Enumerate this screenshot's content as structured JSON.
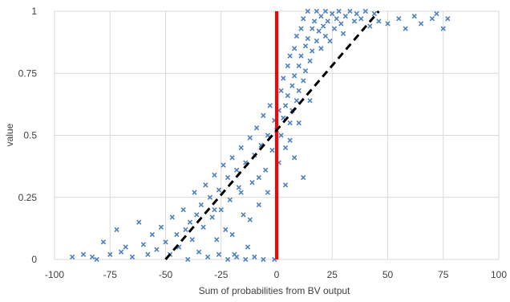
{
  "chart_data": {
    "type": "scatter",
    "title": "",
    "xlabel": "Sum of probabilities from BV output",
    "ylabel": "value",
    "xlim": [
      -100,
      100
    ],
    "ylim": [
      0,
      1
    ],
    "x_ticks": [
      -100,
      -75,
      -50,
      -25,
      0,
      25,
      50,
      75,
      100
    ],
    "x_tick_labels": [
      "-100",
      "-75",
      "-50",
      "-25",
      "0",
      "25",
      "50",
      "75",
      "100"
    ],
    "y_ticks": [
      0,
      0.25,
      0.5,
      0.75,
      1
    ],
    "y_tick_labels": [
      "0",
      "0.25",
      "0.5",
      "0.75",
      "1"
    ],
    "grid": true,
    "legend": "none",
    "colors": {
      "points": "#4F81BD",
      "vertical_line": "#FF0000",
      "trend_line": "#000000",
      "grid": "#D9D9D9",
      "text": "#404040"
    },
    "series": [
      {
        "marker": "x",
        "points": [
          [
            -92,
            0.01
          ],
          [
            -87,
            0.02
          ],
          [
            -83,
            0.01
          ],
          [
            -81,
            0.0
          ],
          [
            -78,
            0.07
          ],
          [
            -75,
            0.02
          ],
          [
            -72,
            0.12
          ],
          [
            -70,
            0.03
          ],
          [
            -68,
            0.05
          ],
          [
            -65,
            0.01
          ],
          [
            -62,
            0.15
          ],
          [
            -60,
            0.06
          ],
          [
            -58,
            0.02
          ],
          [
            -56,
            0.1
          ],
          [
            -54,
            0.04
          ],
          [
            -52,
            0.13
          ],
          [
            -50,
            0.07
          ],
          [
            -48,
            0.02
          ],
          [
            -47,
            0.17
          ],
          [
            -45,
            0.1
          ],
          [
            -44,
            0.05
          ],
          [
            -42,
            0.2
          ],
          [
            -41,
            0.12
          ],
          [
            -40,
            0.0
          ],
          [
            -39,
            0.15
          ],
          [
            -38,
            0.08
          ],
          [
            -37,
            0.27
          ],
          [
            -36,
            0.18
          ],
          [
            -35,
            0.03
          ],
          [
            -34,
            0.22
          ],
          [
            -33,
            0.13
          ],
          [
            -32,
            0.3
          ],
          [
            -31,
            0.01
          ],
          [
            -30,
            0.25
          ],
          [
            -29,
            0.17
          ],
          [
            -28,
            0.34
          ],
          [
            -27,
            0.08
          ],
          [
            -26,
            0.28
          ],
          [
            -25,
            0.2
          ],
          [
            -24,
            0.38
          ],
          [
            -23,
            0.12
          ],
          [
            -22,
            0.33
          ],
          [
            -21,
            0.24
          ],
          [
            -20,
            0.41
          ],
          [
            -19,
            0.02
          ],
          [
            -18,
            0.36
          ],
          [
            -17,
            0.29
          ],
          [
            -16,
            0.45
          ],
          [
            -15,
            0.18
          ],
          [
            -14,
            0.39
          ],
          [
            -13,
            0.05
          ],
          [
            -12,
            0.49
          ],
          [
            -11,
            0.31
          ],
          [
            -10,
            0.42
          ],
          [
            -9,
            0.53
          ],
          [
            -8,
            0.22
          ],
          [
            -7,
            0.46
          ],
          [
            -6,
            0.58
          ],
          [
            -5,
            0.36
          ],
          [
            -4,
            0.5
          ],
          [
            -3,
            0.62
          ],
          [
            -2,
            0.44
          ],
          [
            -1,
            0.56
          ],
          [
            -1,
            0.0
          ],
          [
            0,
            0.52
          ],
          [
            1,
            0.6
          ],
          [
            1,
            0.39
          ],
          [
            2,
            0.68
          ],
          [
            2,
            0.5
          ],
          [
            3,
            0.73
          ],
          [
            3,
            0.57
          ],
          [
            4,
            0.62
          ],
          [
            4,
            0.45
          ],
          [
            5,
            0.78
          ],
          [
            5,
            0.66
          ],
          [
            6,
            0.55
          ],
          [
            6,
            0.82
          ],
          [
            7,
            0.7
          ],
          [
            7,
            0.6
          ],
          [
            8,
            0.85
          ],
          [
            8,
            0.74
          ],
          [
            9,
            0.64
          ],
          [
            9,
            0.9
          ],
          [
            10,
            0.78
          ],
          [
            10,
            0.68
          ],
          [
            11,
            0.93
          ],
          [
            11,
            0.82
          ],
          [
            12,
            0.72
          ],
          [
            12,
            0.97
          ],
          [
            13,
            0.86
          ],
          [
            13,
            0.76
          ],
          [
            14,
            1.0
          ],
          [
            14,
            0.89
          ],
          [
            15,
            0.8
          ],
          [
            16,
            0.93
          ],
          [
            16,
            0.84
          ],
          [
            17,
            0.96
          ],
          [
            18,
            0.88
          ],
          [
            18,
            1.0
          ],
          [
            19,
            0.92
          ],
          [
            20,
            0.98
          ],
          [
            20,
            0.85
          ],
          [
            21,
            0.94
          ],
          [
            22,
            0.9
          ],
          [
            22,
            1.0
          ],
          [
            23,
            0.96
          ],
          [
            24,
            0.88
          ],
          [
            25,
            0.99
          ],
          [
            26,
            0.93
          ],
          [
            27,
            0.97
          ],
          [
            28,
            1.0
          ],
          [
            29,
            0.95
          ],
          [
            30,
            0.91
          ],
          [
            31,
            0.98
          ],
          [
            33,
            1.0
          ],
          [
            35,
            0.96
          ],
          [
            36,
            0.99
          ],
          [
            38,
            0.97
          ],
          [
            40,
            1.0
          ],
          [
            42,
            0.94
          ],
          [
            44,
            0.99
          ],
          [
            46,
            0.96
          ],
          [
            50,
            0.95
          ],
          [
            55,
            0.97
          ],
          [
            58,
            0.93
          ],
          [
            62,
            0.98
          ],
          [
            65,
            0.95
          ],
          [
            70,
            0.97
          ],
          [
            72,
            0.99
          ],
          [
            75,
            0.93
          ],
          [
            77,
            0.97
          ],
          [
            -6,
            0.0
          ],
          [
            -10,
            0.01
          ],
          [
            -14,
            0.0
          ],
          [
            -18,
            0.01
          ],
          [
            -22,
            0.0
          ],
          [
            -26,
            0.02
          ],
          [
            -28,
            0.2
          ],
          [
            -20,
            0.1
          ],
          [
            -16,
            0.27
          ],
          [
            -12,
            0.16
          ],
          [
            -8,
            0.33
          ],
          [
            -4,
            0.27
          ],
          [
            6,
            0.48
          ],
          [
            10,
            0.55
          ],
          [
            15,
            0.64
          ],
          [
            12,
            0.33
          ],
          [
            8,
            0.41
          ],
          [
            4,
            0.3
          ]
        ]
      }
    ],
    "reference_lines": [
      {
        "kind": "vertical",
        "x": 0,
        "style": "solid",
        "color": "#FF0000"
      },
      {
        "kind": "trend",
        "from": [
          -50,
          0
        ],
        "to": [
          46,
          1
        ],
        "style": "dashed",
        "color": "#000000"
      }
    ]
  }
}
